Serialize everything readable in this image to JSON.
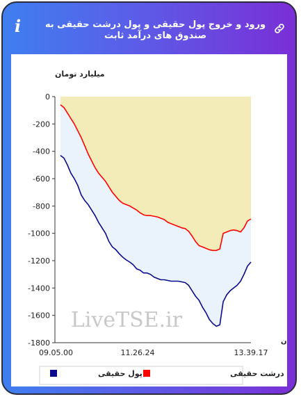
{
  "header": {
    "title": "ورود و خروج پول حقیقی و پول درشت حقیقی به صندوق های درآمد ثابت",
    "info_icon": "info-icon",
    "link_icon": "link-icon"
  },
  "colors": {
    "gradient_start": "#3f7ff0",
    "gradient_end": "#7a2fd6",
    "real_money_line": "#0a0a8c",
    "big_money_line": "#ff0000",
    "area_light_blue": "#eaf3fb",
    "area_beige": "#f3ecb8"
  },
  "watermark": "LiveTSE.ir",
  "chart_data": {
    "type": "line",
    "ylabel": "میلیارد تومان",
    "xlabel": "زمان",
    "ylim": [
      -1800,
      0
    ],
    "yticks": [
      0,
      -200,
      -400,
      -600,
      -800,
      -1000,
      -1200,
      -1400,
      -1600,
      -1800
    ],
    "xticks": [
      "09.05.00",
      "11.26.24",
      "13.39.17"
    ],
    "legend_position": "bottom",
    "series": [
      {
        "name": "پول حقیقی",
        "color": "#0a0a8c",
        "values": [
          -430,
          -450,
          -500,
          -560,
          -600,
          -650,
          -720,
          -760,
          -790,
          -830,
          -870,
          -920,
          -960,
          -1000,
          -1060,
          -1100,
          -1120,
          -1150,
          -1175,
          -1195,
          -1210,
          -1230,
          -1260,
          -1270,
          -1290,
          -1290,
          -1300,
          -1320,
          -1330,
          -1340,
          -1340,
          -1345,
          -1350,
          -1350,
          -1350,
          -1355,
          -1360,
          -1380,
          -1420,
          -1460,
          -1490,
          -1540,
          -1580,
          -1630,
          -1660,
          -1680,
          -1670,
          -1500,
          -1450,
          -1420,
          -1400,
          -1380,
          -1350,
          -1300,
          -1240,
          -1210
        ]
      },
      {
        "name": "پول درشت حقیقی",
        "color": "#ff0000",
        "values": [
          -60,
          -80,
          -120,
          -160,
          -200,
          -250,
          -300,
          -360,
          -420,
          -470,
          -520,
          -560,
          -590,
          -620,
          -660,
          -700,
          -730,
          -760,
          -780,
          -790,
          -800,
          -815,
          -830,
          -850,
          -865,
          -870,
          -870,
          -875,
          -880,
          -890,
          -900,
          -920,
          -930,
          -940,
          -950,
          -960,
          -965,
          -985,
          -1020,
          -1060,
          -1090,
          -1100,
          -1110,
          -1120,
          -1125,
          -1125,
          -1115,
          -1000,
          -990,
          -980,
          -975,
          -980,
          -990,
          -960,
          -910,
          -895
        ]
      }
    ]
  }
}
